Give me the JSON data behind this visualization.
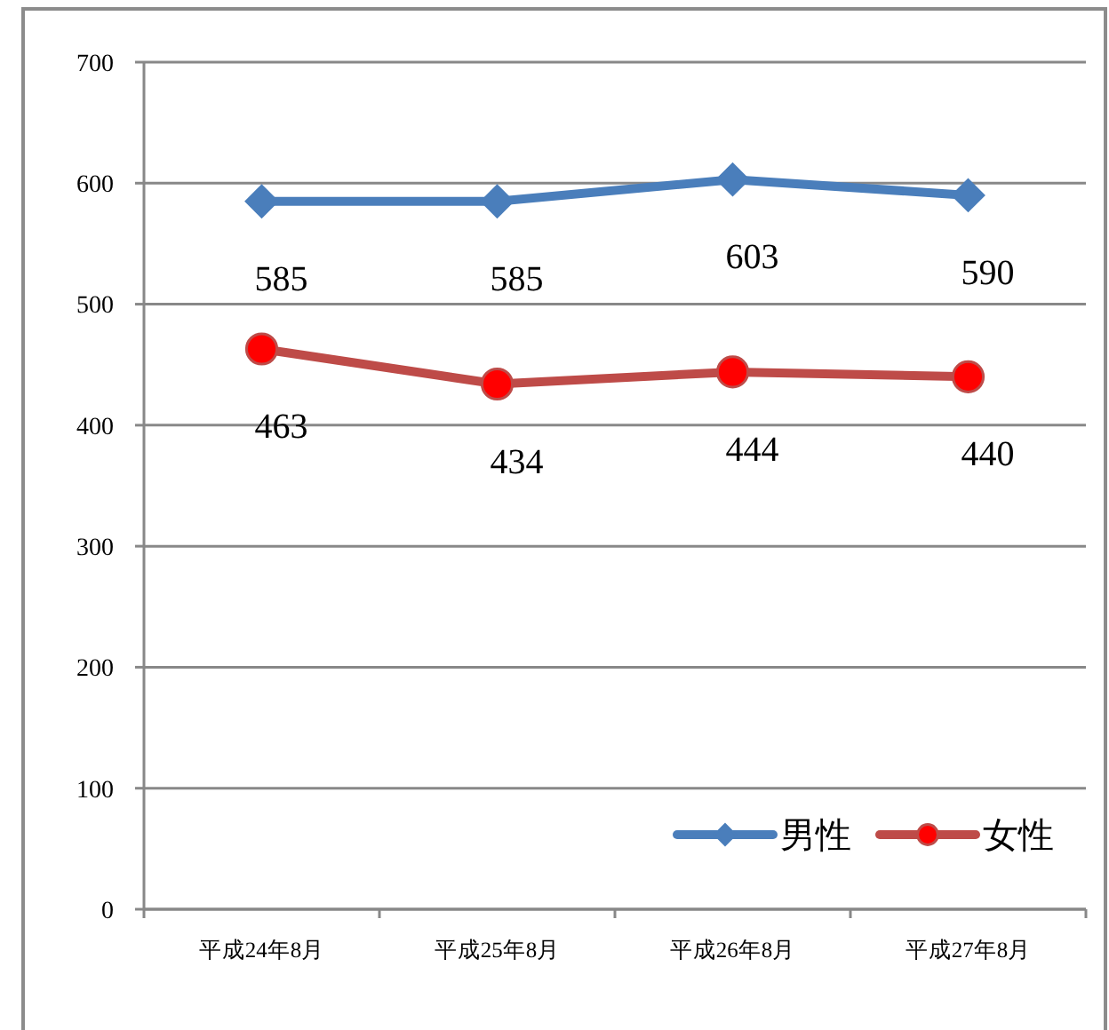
{
  "chart_data": {
    "type": "line",
    "categories": [
      "平成24年8月",
      "平成25年8月",
      "平成26年8月",
      "平成27年8月"
    ],
    "series": [
      {
        "name": "男性",
        "color": "#4a7ebb",
        "marker": "diamond",
        "values": [
          585,
          585,
          603,
          590
        ]
      },
      {
        "name": "女性",
        "color": "#be4b48",
        "marker": "circle",
        "colors": [
          "#ff0000",
          "#ff0000",
          "#ff0000",
          "#ff0000"
        ],
        "values": [
          463,
          434,
          444,
          440
        ]
      }
    ],
    "ylim": [
      0,
      700
    ],
    "yticks": [
      0,
      100,
      200,
      300,
      400,
      500,
      600,
      700
    ],
    "grid": "y",
    "legend": "bottom right",
    "data_labels": true,
    "line_style": "solid"
  }
}
